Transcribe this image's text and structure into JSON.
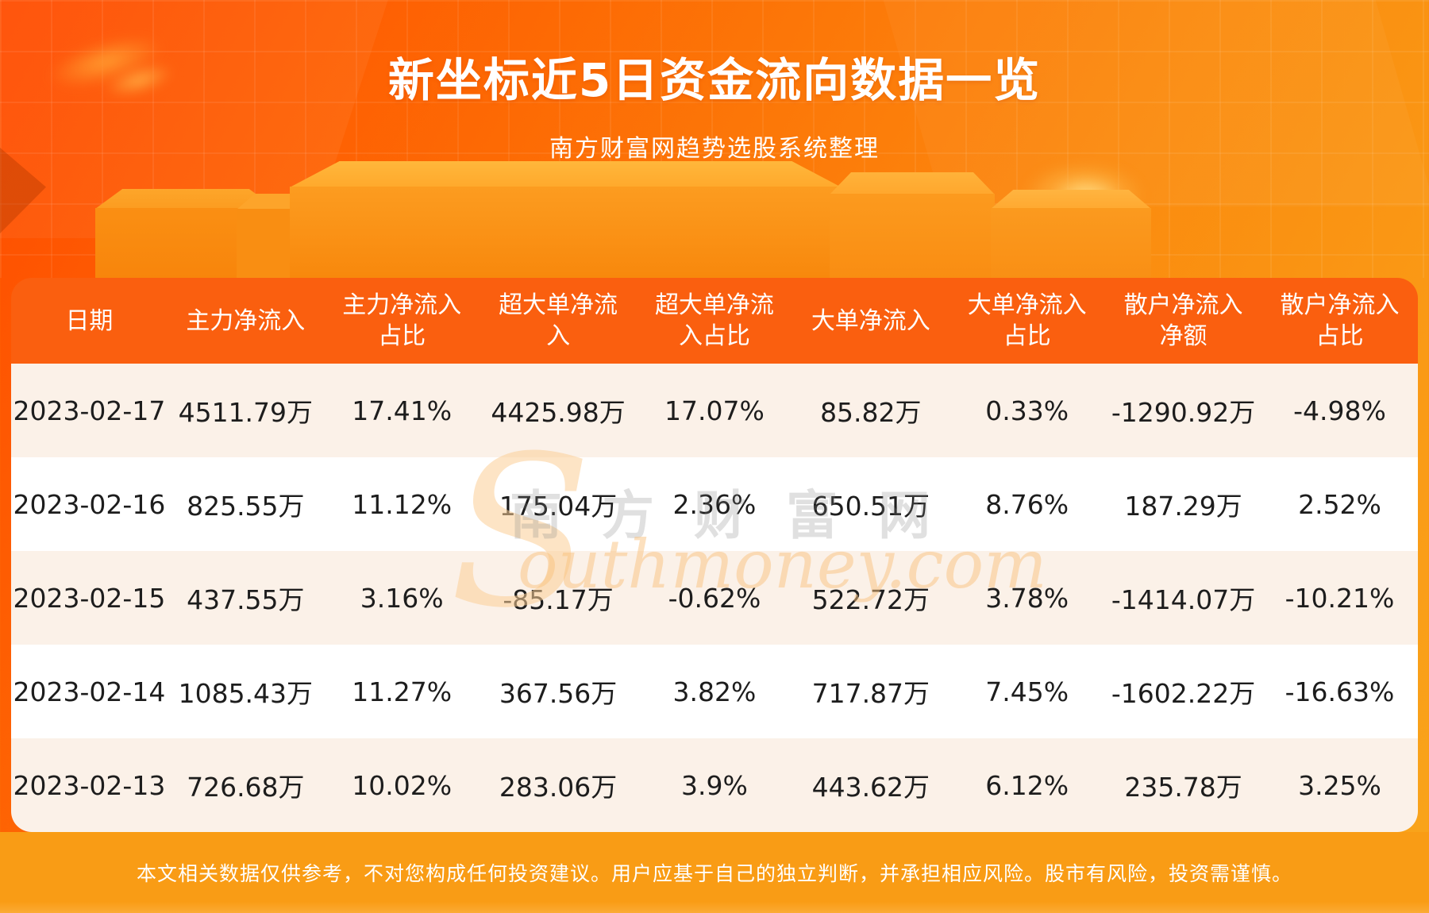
{
  "header": {
    "title": "新坐标近5日资金流向数据一览",
    "subtitle": "南方财富网趋势选股系统整理"
  },
  "table": {
    "columns": [
      "日期",
      "主力净流入",
      "主力净流入\n占比",
      "超大单净流\n入",
      "超大单净流\n入占比",
      "大单净流入",
      "大单净流入\n占比",
      "散户净流入\n净额",
      "散户净流入\n占比"
    ],
    "rows": [
      [
        "2023-02-17",
        "4511.79万",
        "17.41%",
        "4425.98万",
        "17.07%",
        "85.82万",
        "0.33%",
        "-1290.92万",
        "-4.98%"
      ],
      [
        "2023-02-16",
        "825.55万",
        "11.12%",
        "175.04万",
        "2.36%",
        "650.51万",
        "8.76%",
        "187.29万",
        "2.52%"
      ],
      [
        "2023-02-15",
        "437.55万",
        "3.16%",
        "-85.17万",
        "-0.62%",
        "522.72万",
        "3.78%",
        "-1414.07万",
        "-10.21%"
      ],
      [
        "2023-02-14",
        "1085.43万",
        "11.27%",
        "367.56万",
        "3.82%",
        "717.87万",
        "7.45%",
        "-1602.22万",
        "-16.63%"
      ],
      [
        "2023-02-13",
        "726.68万",
        "10.02%",
        "283.06万",
        "3.9%",
        "443.62万",
        "6.12%",
        "235.78万",
        "3.25%"
      ]
    ]
  },
  "watermark": {
    "initial": "S",
    "cn": "南方财富网",
    "en": "outhmoney.com"
  },
  "footer": {
    "disclaimer": "本文相关数据仅供参考，不对您构成任何投资建议。用户应基于自己的独立判断，并承担相应风险。股市有风险，投资需谨慎。"
  },
  "colors": {
    "banner_top": "#ff4c00",
    "banner_bottom": "#f9a51b",
    "table_header": "#fa5f0f",
    "row_cream": "#fbf1e8",
    "row_white": "#ffffff",
    "footer_orange": "#f99c15",
    "text_dark": "#1d1d1d",
    "text_white": "#ffffff"
  },
  "chart_data": {
    "type": "table",
    "title": "新坐标近5日资金流向数据一览",
    "subtitle": "南方财富网趋势选股系统整理",
    "columns": [
      "日期",
      "主力净流入",
      "主力净流入占比",
      "超大单净流入",
      "超大单净流入占比",
      "大单净流入",
      "大单净流入占比",
      "散户净流入净额",
      "散户净流入占比"
    ],
    "rows": [
      [
        "2023-02-17",
        "4511.79万",
        "17.41%",
        "4425.98万",
        "17.07%",
        "85.82万",
        "0.33%",
        "-1290.92万",
        "-4.98%"
      ],
      [
        "2023-02-16",
        "825.55万",
        "11.12%",
        "175.04万",
        "2.36%",
        "650.51万",
        "8.76%",
        "187.29万",
        "2.52%"
      ],
      [
        "2023-02-15",
        "437.55万",
        "3.16%",
        "-85.17万",
        "-0.62%",
        "522.72万",
        "3.78%",
        "-1414.07万",
        "-10.21%"
      ],
      [
        "2023-02-14",
        "1085.43万",
        "11.27%",
        "367.56万",
        "3.82%",
        "717.87万",
        "7.45%",
        "-1602.22万",
        "-16.63%"
      ],
      [
        "2023-02-13",
        "726.68万",
        "10.02%",
        "283.06万",
        "3.9%",
        "443.62万",
        "6.12%",
        "235.78万",
        "3.25%"
      ]
    ]
  }
}
